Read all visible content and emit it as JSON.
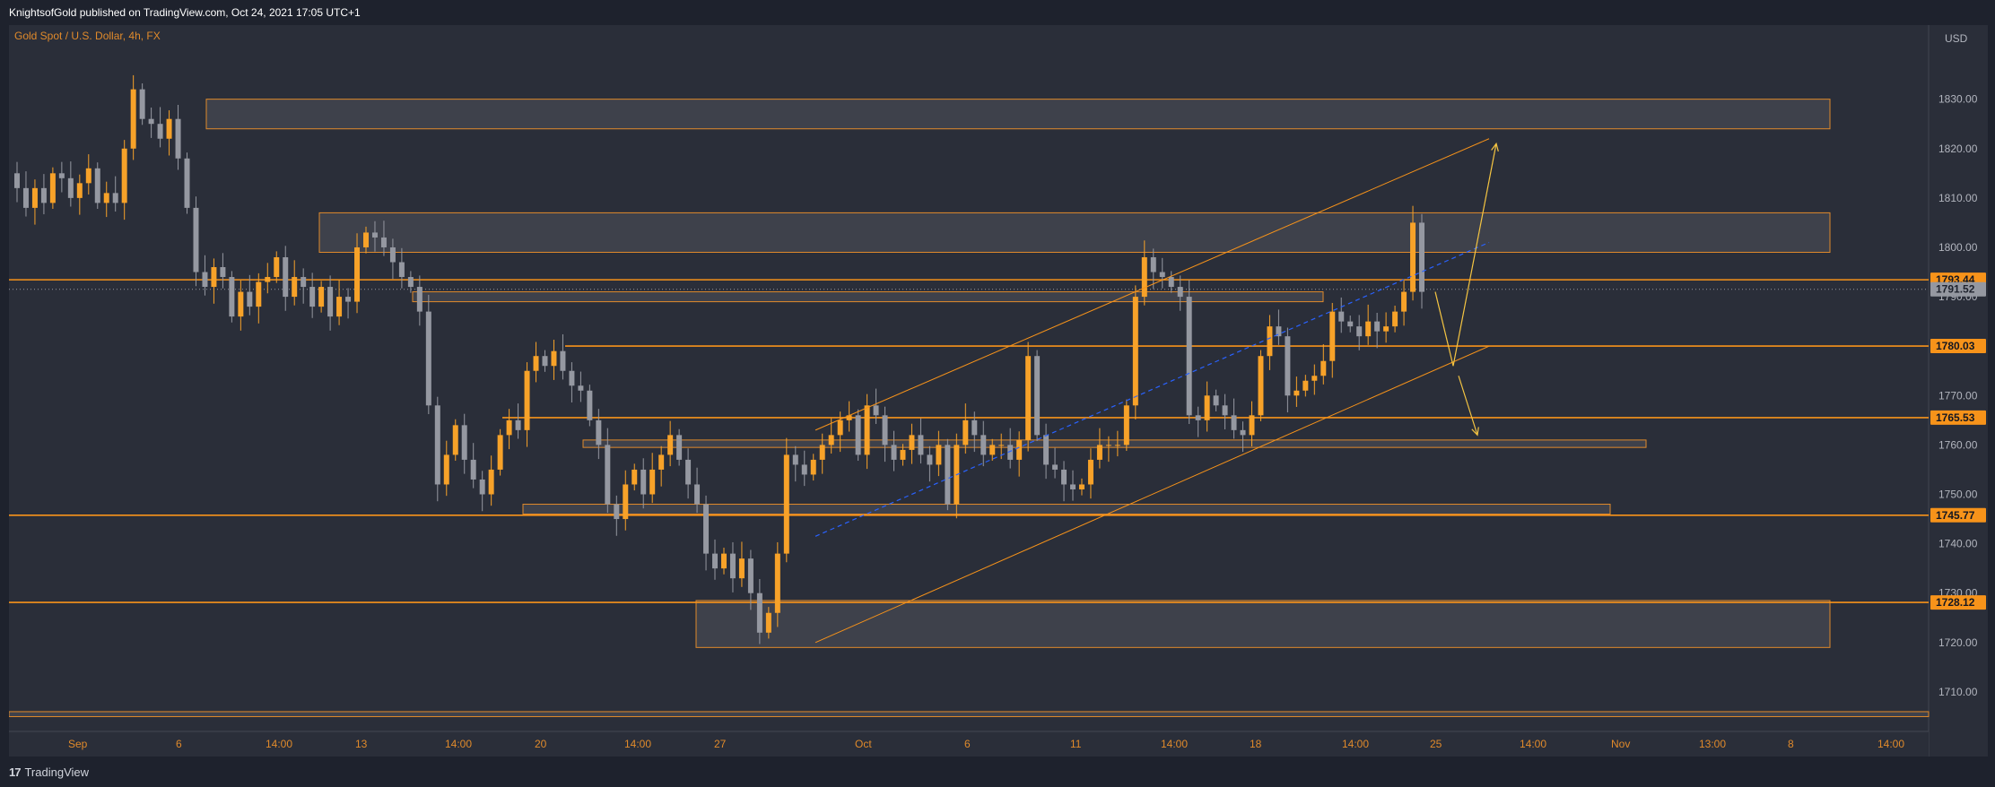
{
  "header": {
    "text": "KnightsofGold published on TradingView.com, Oct 24, 2021 17:05 UTC+1"
  },
  "footer": {
    "logo_text": "TradingView",
    "logo_icon": "tradingview-logo-icon"
  },
  "colors": {
    "background": "#2a2e39",
    "bull": "#f7a229",
    "bear": "#9598a1",
    "level": "#f7931a",
    "zone_fill": "#454852",
    "zone_border": "#e08a2b",
    "trendline": "#2962ff"
  },
  "chart_data": {
    "type": "candlestick",
    "title": "Gold Spot / U.S. Dollar, 4h, FX",
    "currency_label": "USD",
    "ylim": [
      1702,
      1845
    ],
    "y_ticks": [
      "1710.00",
      "1720.00",
      "1730.00",
      "1740.00",
      "1750.00",
      "1760.00",
      "1770.00",
      "1780.00",
      "1790.00",
      "1800.00",
      "1810.00",
      "1820.00",
      "1830.00"
    ],
    "x_tick_labels": [
      "Sep",
      "6",
      "14:00",
      "13",
      "14:00",
      "20",
      "14:00",
      "27",
      "Oct",
      "6",
      "11",
      "14:00",
      "18",
      "14:00",
      "25",
      "14:00",
      "Nov",
      "13:00",
      "8",
      "14:00"
    ],
    "price_tags": [
      {
        "label": "1793.44",
        "value": 1793.44,
        "style": "level"
      },
      {
        "label": "1791.52",
        "value": 1791.52,
        "style": "current"
      },
      {
        "label": "1780.03",
        "value": 1780.03,
        "style": "level"
      },
      {
        "label": "1765.53",
        "value": 1765.53,
        "style": "level"
      },
      {
        "label": "1745.77",
        "value": 1745.77,
        "style": "level"
      },
      {
        "label": "1728.12",
        "value": 1728.12,
        "style": "level"
      }
    ],
    "horizontal_levels": [
      1793.44,
      1780.03,
      1765.53,
      1745.77,
      1728.12
    ],
    "zones": [
      {
        "from": 1824,
        "to": 1830
      },
      {
        "from": 1799,
        "to": 1807
      },
      {
        "from": 1789,
        "to": 1791
      },
      {
        "from": 1759.5,
        "to": 1761
      },
      {
        "from": 1746,
        "to": 1748
      },
      {
        "from": 1719,
        "to": 1728.5
      },
      {
        "from": 1705,
        "to": 1706
      }
    ],
    "channel_description": "Ascending parallel channel from Sep 29 lows through Oct 22 highs with dashed midline",
    "projection_arrows": "Two possible paths from current price: up to ~1821 or down to ~1776 then ~1762",
    "ohlc_path": [
      1815,
      1812,
      1808,
      1812,
      1809,
      1815,
      1814,
      1810,
      1813,
      1816,
      1809,
      1811,
      1809,
      1820,
      1832,
      1826,
      1825,
      1822,
      1826,
      1818,
      1808,
      1795,
      1792,
      1796,
      1794,
      1786,
      1791,
      1788,
      1793,
      1794,
      1798,
      1790,
      1794,
      1792,
      1788,
      1792,
      1786,
      1790,
      1789,
      1800,
      1803,
      1802,
      1800,
      1797,
      1794,
      1792,
      1787,
      1768,
      1752,
      1758,
      1764,
      1757,
      1753,
      1750,
      1755,
      1762,
      1765,
      1763,
      1775,
      1778,
      1776,
      1779,
      1775,
      1772,
      1771,
      1765,
      1760,
      1748,
      1745,
      1752,
      1755,
      1750,
      1755,
      1758,
      1762,
      1757,
      1752,
      1748,
      1738,
      1735,
      1738,
      1733,
      1737,
      1730,
      1722,
      1726,
      1738,
      1758,
      1756,
      1754,
      1757,
      1760,
      1762,
      1765,
      1766,
      1758,
      1768,
      1766,
      1760,
      1757,
      1759,
      1762,
      1758,
      1756,
      1760,
      1748,
      1760,
      1765,
      1762,
      1758,
      1760,
      1760,
      1757,
      1761,
      1778,
      1762,
      1756,
      1755,
      1752,
      1751,
      1752,
      1757,
      1760,
      1760,
      1760,
      1768,
      1790,
      1798,
      1795,
      1794,
      1792,
      1790,
      1766,
      1765,
      1770,
      1768,
      1766,
      1763,
      1762,
      1766,
      1778,
      1784,
      1782,
      1770,
      1771,
      1773,
      1774,
      1777,
      1787,
      1785,
      1784,
      1782,
      1785,
      1783,
      1784,
      1787,
      1791,
      1805,
      1791
    ]
  }
}
